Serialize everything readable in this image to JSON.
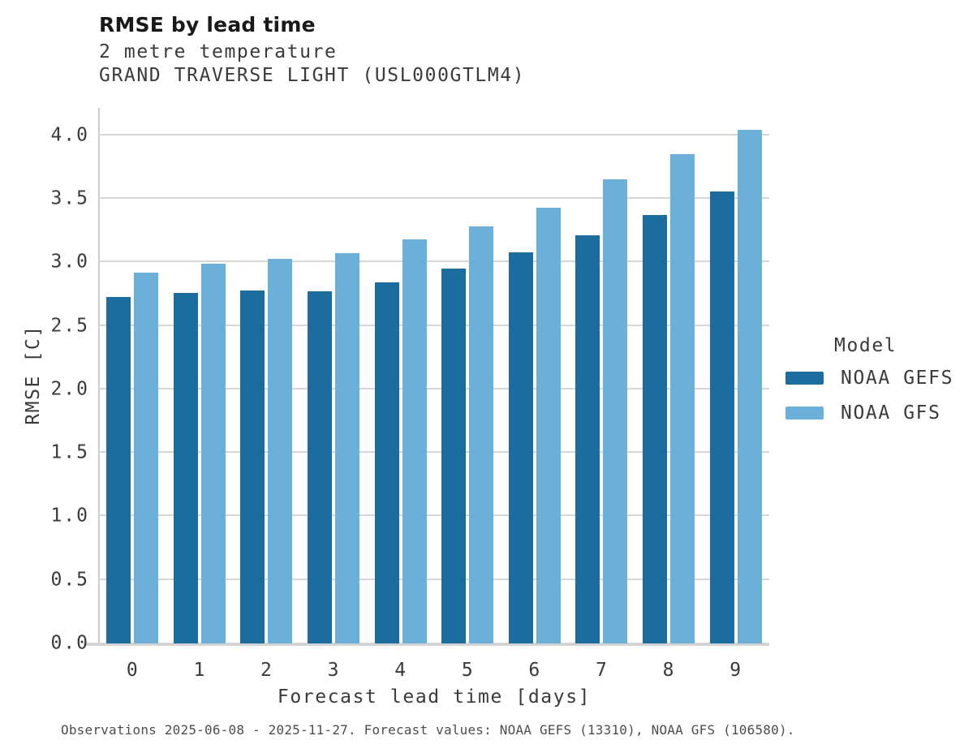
{
  "header": {
    "title": "RMSE by lead time",
    "subtitle_line1": "2 metre temperature",
    "subtitle_line2": "GRAND TRAVERSE LIGHT (USL000GTLM4)"
  },
  "chart_data": {
    "type": "bar",
    "title": "RMSE by lead time",
    "subtitle": [
      "2 metre temperature",
      "GRAND TRAVERSE LIGHT (USL000GTLM4)"
    ],
    "categories": [
      "0",
      "1",
      "2",
      "3",
      "4",
      "5",
      "6",
      "7",
      "8",
      "9"
    ],
    "series": [
      {
        "name": "NOAA GEFS",
        "color": "#1a6d9e",
        "values": [
          2.73,
          2.76,
          2.78,
          2.77,
          2.84,
          2.95,
          3.08,
          3.21,
          3.37,
          3.56
        ]
      },
      {
        "name": "NOAA GFS",
        "color": "#6ab0d9",
        "values": [
          2.92,
          2.99,
          3.03,
          3.07,
          3.18,
          3.28,
          3.43,
          3.65,
          3.85,
          4.04
        ]
      }
    ],
    "xlabel": "Forecast lead time [days]",
    "ylabel": "RMSE [C]",
    "ylim": [
      0,
      4.215
    ],
    "yticks": [
      0.0,
      0.5,
      1.0,
      1.5,
      2.0,
      2.5,
      3.0,
      3.5,
      4.0
    ],
    "ytick_labels": [
      "0.0",
      "0.5",
      "1.0",
      "1.5",
      "2.0",
      "2.5",
      "3.0",
      "3.5",
      "4.0"
    ],
    "grid": "horizontal",
    "legend_position": "right"
  },
  "legend": {
    "title": "Model",
    "items": [
      {
        "label": "NOAA GEFS",
        "color": "#1a6d9e"
      },
      {
        "label": "NOAA GFS",
        "color": "#6ab0d9"
      }
    ]
  },
  "footer": {
    "text": "Observations 2025-06-08 - 2025-11-27. Forecast values: NOAA GEFS (13310), NOAA GFS (106580)."
  },
  "colors": {
    "gridline": "#d6d6d6",
    "spine": "#d4d4d4",
    "text": "#3a3a3a"
  }
}
